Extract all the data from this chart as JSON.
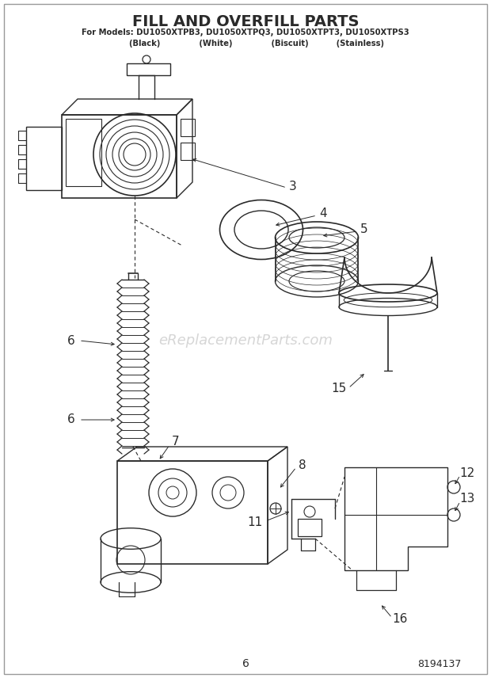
{
  "title": "FILL AND OVERFILL PARTS",
  "subtitle1": "For Models: DU1050XTPB3, DU1050XTPQ3, DU1050XTPT3, DU1050XTPS3",
  "subtitle2": "        (Black)              (White)              (Biscuit)          (Stainless)",
  "page_number": "6",
  "doc_number": "8194137",
  "watermark": "eReplacementParts.com",
  "bg_color": "#ffffff",
  "line_color": "#2a2a2a"
}
